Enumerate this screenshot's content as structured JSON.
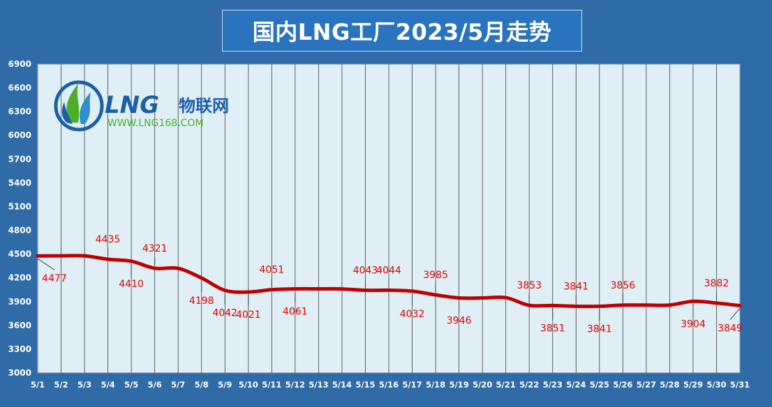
{
  "title": "国内LNG工厂2023/5月走势",
  "logo": {
    "brand": "LNG",
    "brand_cn": "物联网",
    "url": "WWW.LNG168.COM"
  },
  "colors": {
    "background": "#2f6ba7",
    "plot_bg": "#e0eff6",
    "line": "#c00000",
    "label": "#e00000",
    "logo_green": "#4caf2a",
    "logo_blue": "#1c5fa8"
  },
  "chart_data": {
    "type": "line",
    "categories": [
      "5/1",
      "5/2",
      "5/3",
      "5/4",
      "5/5",
      "5/6",
      "5/7",
      "5/8",
      "5/9",
      "5/10",
      "5/11",
      "5/12",
      "5/13",
      "5/14",
      "5/15",
      "5/16",
      "5/17",
      "5/18",
      "5/19",
      "5/20",
      "5/21",
      "5/22",
      "5/23",
      "5/24",
      "5/25",
      "5/26",
      "5/27",
      "5/28",
      "5/29",
      "5/30",
      "5/31"
    ],
    "series": [
      {
        "values": [
          4477,
          4478,
          4478,
          4435,
          4410,
          4321,
          4320,
          4198,
          4042,
          4021,
          4051,
          4061,
          4061,
          4060,
          4043,
          4044,
          4032,
          3985,
          3946,
          3946,
          3950,
          3853,
          3851,
          3841,
          3841,
          3856,
          3856,
          3856,
          3904,
          3882,
          3849
        ]
      }
    ],
    "ylim": [
      3000,
      6900
    ],
    "yticks": [
      3000,
      3300,
      3600,
      3900,
      4200,
      4500,
      4800,
      5100,
      5400,
      5700,
      6000,
      6300,
      6600,
      6900
    ],
    "grid": "vertical",
    "data_labels": [
      {
        "category": "5/1",
        "text": "4477",
        "pos": "below"
      },
      {
        "category": "5/4",
        "text": "4435",
        "pos": "above"
      },
      {
        "category": "5/5",
        "text": "4410",
        "pos": "below"
      },
      {
        "category": "5/6",
        "text": "4321",
        "pos": "above"
      },
      {
        "category": "5/8",
        "text": "4198",
        "pos": "below"
      },
      {
        "category": "5/9",
        "text": "4042",
        "pos": "below"
      },
      {
        "category": "5/10",
        "text": "4021",
        "pos": "below"
      },
      {
        "category": "5/11",
        "text": "4051",
        "pos": "above"
      },
      {
        "category": "5/12",
        "text": "4061",
        "pos": "below"
      },
      {
        "category": "5/15",
        "text": "4043",
        "pos": "above"
      },
      {
        "category": "5/16",
        "text": "4044",
        "pos": "above"
      },
      {
        "category": "5/17",
        "text": "4032",
        "pos": "below"
      },
      {
        "category": "5/18",
        "text": "3985",
        "pos": "above"
      },
      {
        "category": "5/19",
        "text": "3946",
        "pos": "below"
      },
      {
        "category": "5/22",
        "text": "3853",
        "pos": "above"
      },
      {
        "category": "5/23",
        "text": "3851",
        "pos": "below"
      },
      {
        "category": "5/24",
        "text": "3841",
        "pos": "above"
      },
      {
        "category": "5/25",
        "text": "3841",
        "pos": "below"
      },
      {
        "category": "5/26",
        "text": "3856",
        "pos": "above"
      },
      {
        "category": "5/29",
        "text": "3904",
        "pos": "below"
      },
      {
        "category": "5/30",
        "text": "3882",
        "pos": "above"
      },
      {
        "category": "5/31",
        "text": "3849",
        "pos": "below"
      }
    ]
  }
}
